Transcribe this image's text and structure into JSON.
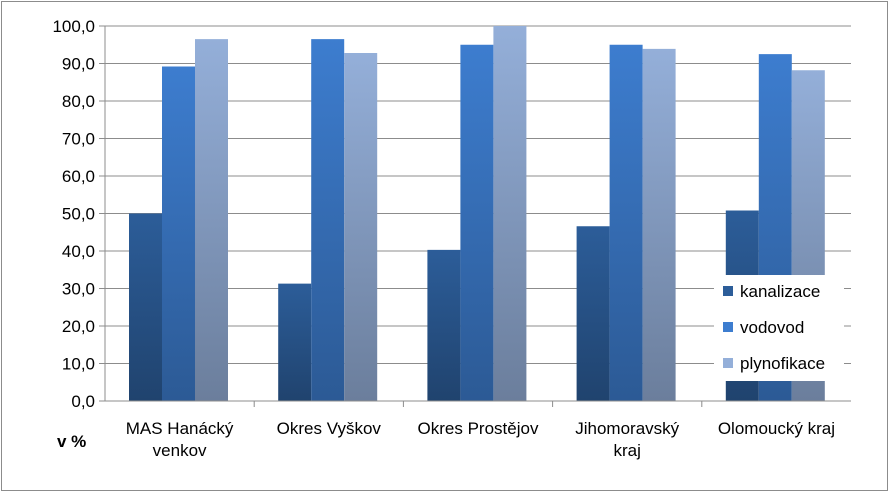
{
  "chart_data": {
    "type": "bar",
    "title": "",
    "xlabel": "",
    "ylabel": "v %",
    "ylim": [
      0,
      100
    ],
    "y_tick_step": 10,
    "y_tick_labels": [
      "0,0",
      "10,0",
      "20,0",
      "30,0",
      "40,0",
      "50,0",
      "60,0",
      "70,0",
      "80,0",
      "90,0",
      "100,0"
    ],
    "grid": true,
    "legend_position": "right",
    "categories": [
      [
        "MAS Hanácký",
        "venkov"
      ],
      [
        "Okres Vyškov"
      ],
      [
        "Okres Prostějov"
      ],
      [
        "Jihomoravský",
        "kraj"
      ],
      [
        "Olomoucký kraj"
      ]
    ],
    "series": [
      {
        "name": "kanalizace",
        "color": "#2c5d99",
        "values": [
          50.0,
          31.3,
          40.3,
          46.6,
          50.8
        ]
      },
      {
        "name": "vodovod",
        "color": "#3d7dcf",
        "values": [
          89.2,
          96.5,
          95.0,
          95.0,
          92.5
        ]
      },
      {
        "name": "plynofikace",
        "color": "#94afd9",
        "values": [
          96.5,
          92.8,
          100.0,
          93.9,
          88.2
        ]
      }
    ]
  }
}
